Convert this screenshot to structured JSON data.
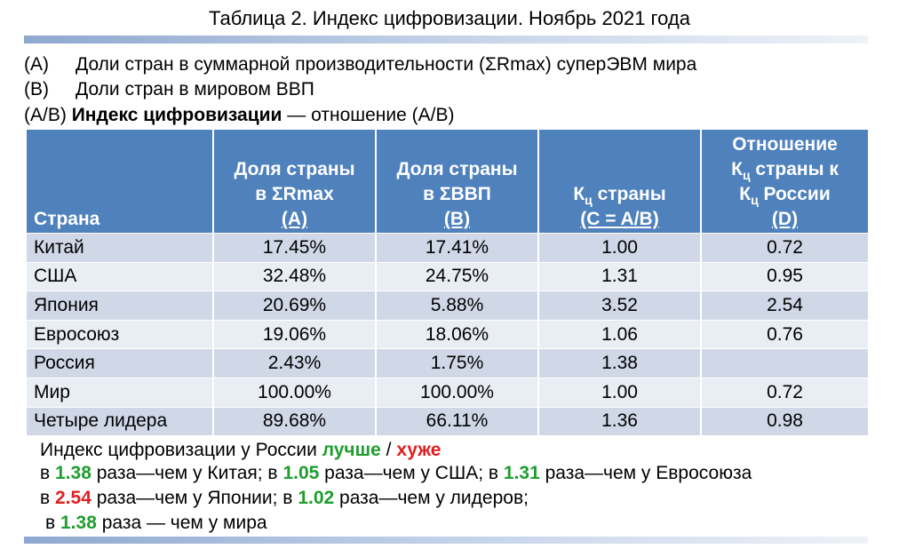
{
  "title": "Таблица 2. Индекс цифровизации.  Ноябрь 2021 года",
  "legend": [
    {
      "tag": "(A)",
      "text": "Доли стран в суммарной производительности (ΣRmax) суперЭВМ мира"
    },
    {
      "tag": "(B)",
      "text": "Доли стран в мировом ВВП"
    },
    {
      "tag": "(A/B)",
      "bold": "Индекс цифровизации",
      "text": " — отношение (A/B)"
    }
  ],
  "table": {
    "headers": {
      "country": "Страна",
      "share_rmax": [
        "Доля страны",
        "в ΣRmax",
        "(A)"
      ],
      "share_gdp": [
        "Доля страны",
        "в ΣВВП",
        "(B)"
      ],
      "kc_pre": "К",
      "kc_sub": "ц",
      "kc_post": " страны",
      "kc_formula": "(C = A/B)",
      "ratio_line1": "Отношение",
      "ratio_l2_pre": "К",
      "ratio_l2_sub": "ц",
      "ratio_l2_post": " страны к",
      "ratio_l3_pre": "К",
      "ratio_l3_sub": "ц",
      "ratio_l3_post": " России",
      "ratio_line4": "(D)"
    },
    "rows": [
      {
        "country": "Китай",
        "a": "17.45%",
        "b": "17.41%",
        "c": "1.00",
        "d": "0.72"
      },
      {
        "country": "США",
        "a": "32.48%",
        "b": "24.75%",
        "c": "1.31",
        "d": "0.95"
      },
      {
        "country": "Япония",
        "a": "20.69%",
        "b": "5.88%",
        "c": "3.52",
        "d": "2.54"
      },
      {
        "country": "Евросоюз",
        "a": "19.06%",
        "b": "18.06%",
        "c": "1.06",
        "d": "0.76"
      },
      {
        "country": "Россия",
        "a": "2.43%",
        "b": "1.75%",
        "c": "1.38",
        "d": ""
      },
      {
        "country": "Мир",
        "a": "100.00%",
        "b": "100.00%",
        "c": "1.00",
        "d": "0.72"
      },
      {
        "country": "Четыре лидера",
        "a": "89.68%",
        "b": "66.11%",
        "c": "1.36",
        "d": "0.98"
      }
    ]
  },
  "notes": {
    "line0_text": "Индекс цифровизации у России ",
    "better": "лучше",
    "slash": " / ",
    "worse": "хуже",
    "line1": [
      {
        "t": "в ",
        "c": ""
      },
      {
        "t": "1.38",
        "c": "green"
      },
      {
        "t": " раза—чем у Китая; в ",
        "c": ""
      },
      {
        "t": "1.05",
        "c": "green"
      },
      {
        "t": " раза—чем у США; в ",
        "c": ""
      },
      {
        "t": "1.31",
        "c": "green"
      },
      {
        "t": " раза—чем у Евросоюза",
        "c": ""
      }
    ],
    "line2": [
      {
        "t": "в ",
        "c": ""
      },
      {
        "t": "2.54",
        "c": "red"
      },
      {
        "t": " раза—чем у Японии; в ",
        "c": ""
      },
      {
        "t": "1.02",
        "c": "green"
      },
      {
        "t": " раза—чем у лидеров;",
        "c": ""
      }
    ],
    "line3": [
      {
        "t": "в ",
        "c": ""
      },
      {
        "t": "1.38",
        "c": "green"
      },
      {
        "t": " раза — чем у мира",
        "c": ""
      }
    ]
  },
  "colors": {
    "header_bg": "#4f81bd",
    "row_odd": "#d0d8e8",
    "row_even": "#e9edf4",
    "better": "#1e9e2f",
    "worse": "#e02020"
  }
}
